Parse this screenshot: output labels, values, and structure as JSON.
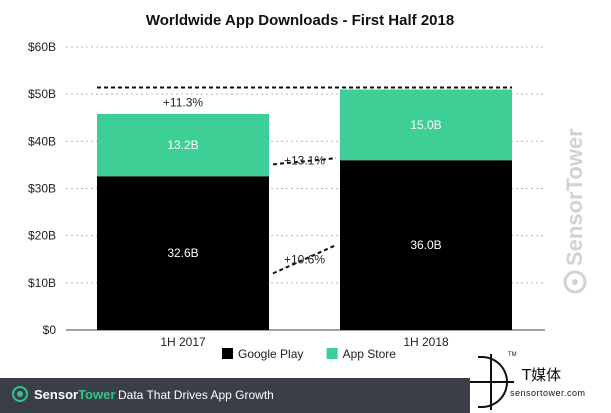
{
  "chart_data": {
    "type": "bar",
    "stacked": true,
    "title": "Worldwide App Downloads - First Half 2018",
    "categories": [
      "1H 2017",
      "1H 2018"
    ],
    "series": [
      {
        "name": "Google Play",
        "color": "#000000",
        "values": [
          32.6,
          36.0
        ],
        "labels": [
          "32.6B",
          "36.0B"
        ]
      },
      {
        "name": "App Store",
        "color": "#3ecf96",
        "values": [
          13.2,
          15.0
        ],
        "labels": [
          "13.2B",
          "15.0B"
        ]
      }
    ],
    "ylim": [
      0,
      60
    ],
    "yticks": [
      0,
      10,
      20,
      30,
      40,
      50,
      60
    ],
    "ytick_labels": [
      "$0",
      "$10B",
      "$20B",
      "$30B",
      "$40B",
      "$50B",
      "$60B"
    ],
    "grid": true,
    "legend": "bottom",
    "annotations": {
      "total_growth": "+11.3%",
      "app_store_growth": "+13.1%",
      "google_play_growth": "+10.6%"
    },
    "colors": {
      "grid": "#b8b8b8",
      "label_light": "#ffffff",
      "text": "#222222"
    }
  },
  "footer": {
    "brand_prefix": "Sensor",
    "brand_suffix": "Tower",
    "tagline": "Data That Drives App Growth",
    "background": "#3a3f47",
    "accent": "#30c48d"
  },
  "watermark": {
    "text": "SensorTower",
    "icon": "sensortower-logo-icon"
  },
  "corner_logo": {
    "tm": "TM",
    "name": "T媒体",
    "url": "sensortower.com"
  }
}
